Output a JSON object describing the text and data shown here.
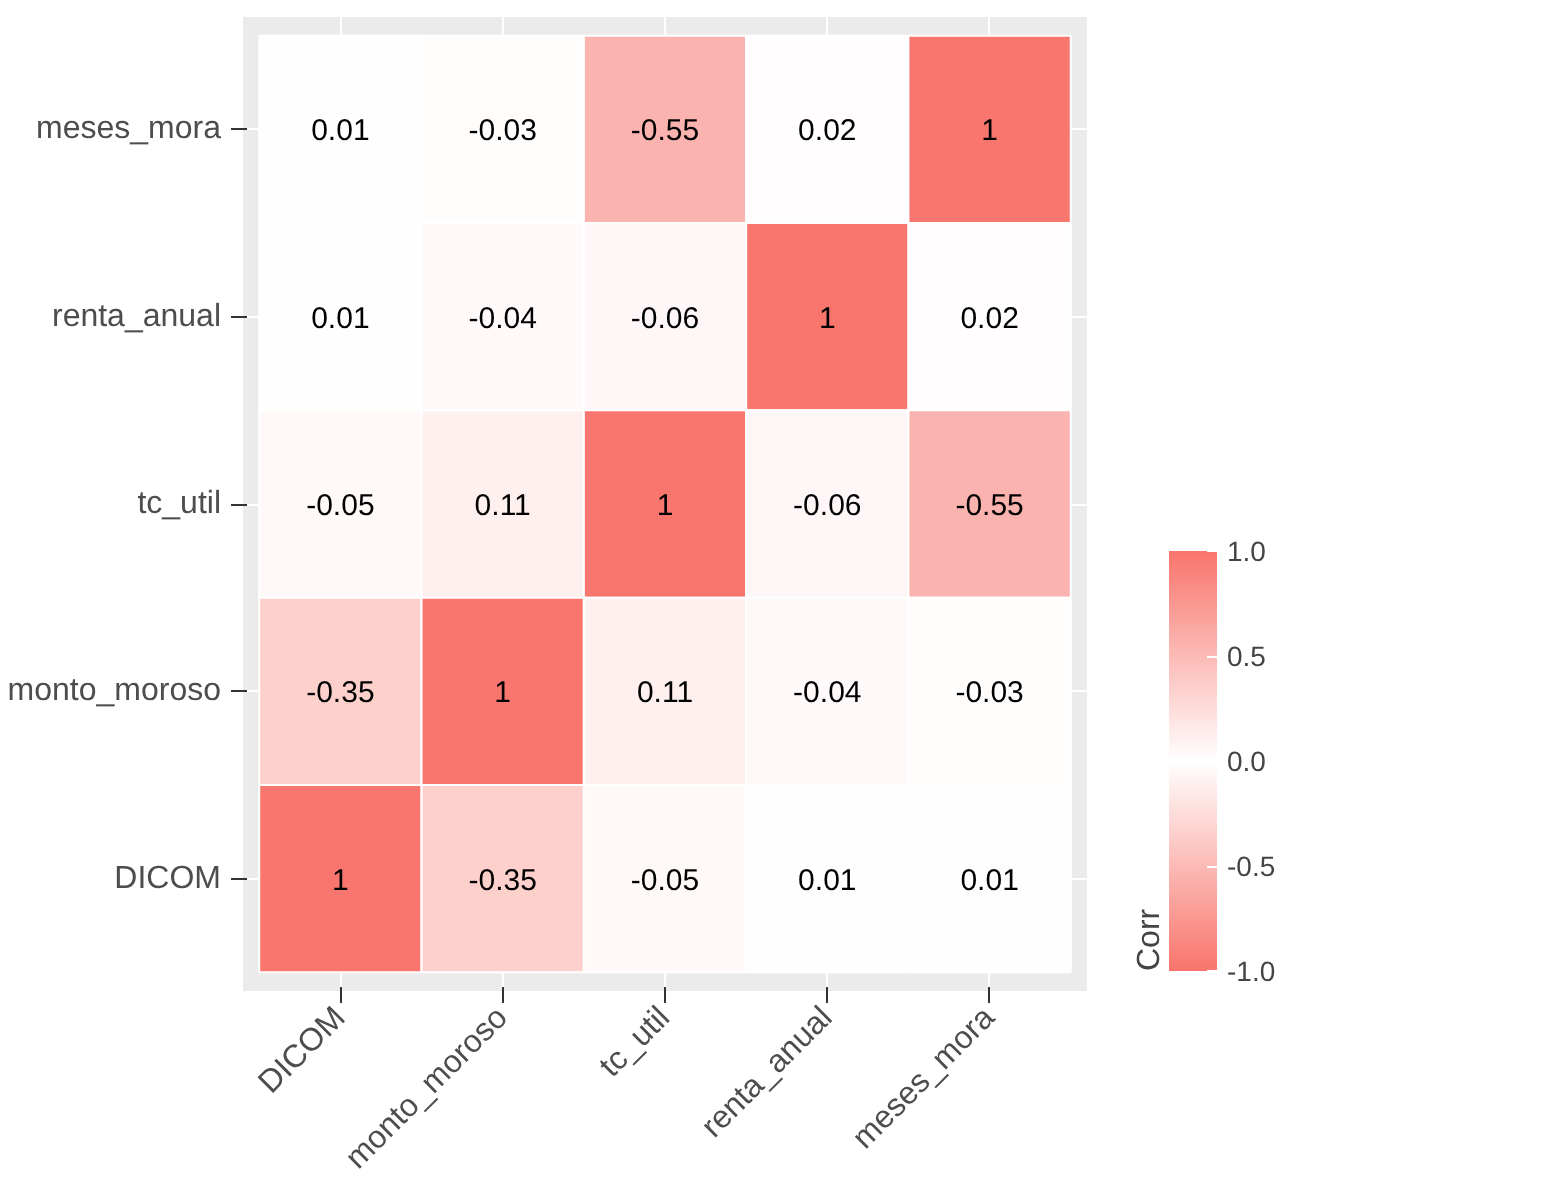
{
  "chart_data": {
    "type": "heatmap",
    "categories": [
      "DICOM",
      "monto_moroso",
      "tc_util",
      "renta_anual",
      "meses_mora"
    ],
    "y_categories": [
      "meses_mora",
      "renta_anual",
      "tc_util",
      "monto_moroso",
      "DICOM"
    ],
    "cells": [
      [
        0.01,
        -0.03,
        -0.55,
        0.02,
        1
      ],
      [
        0.01,
        -0.04,
        -0.06,
        1,
        0.02
      ],
      [
        -0.05,
        0.11,
        1,
        -0.06,
        -0.55
      ],
      [
        -0.35,
        1,
        0.11,
        -0.04,
        -0.03
      ],
      [
        1,
        -0.35,
        -0.05,
        0.01,
        0.01
      ]
    ],
    "data_labels": true,
    "clabel": "Corr",
    "clim": [
      -1,
      1
    ],
    "cticks": [
      {
        "value": -1,
        "label": "-1.0"
      },
      {
        "value": -0.5,
        "label": "-0.5"
      },
      {
        "value": 0,
        "label": "0.0"
      },
      {
        "value": 0.5,
        "label": "0.5"
      },
      {
        "value": 1,
        "label": "1.0"
      }
    ],
    "grid": true
  }
}
